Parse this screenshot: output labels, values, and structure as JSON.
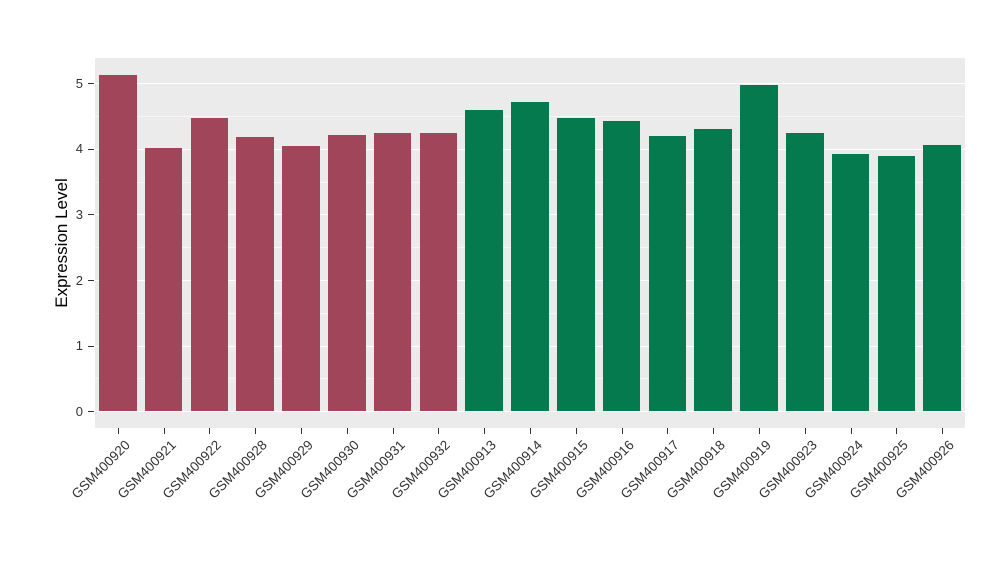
{
  "chart_data": {
    "type": "bar",
    "title": "",
    "xlabel": "",
    "ylabel": "Expression Level",
    "ylim": [
      0,
      5
    ],
    "y_major_ticks": [
      0,
      1,
      2,
      3,
      4,
      5
    ],
    "y_minor_step": 0.5,
    "grid": true,
    "legend_position": "none",
    "panel_background": "#EBEBEB",
    "categories": [
      "GSM400920",
      "GSM400921",
      "GSM400922",
      "GSM400928",
      "GSM400929",
      "GSM400930",
      "GSM400931",
      "GSM400932",
      "GSM400913",
      "GSM400914",
      "GSM400915",
      "GSM400916",
      "GSM400917",
      "GSM400918",
      "GSM400919",
      "GSM400923",
      "GSM400924",
      "GSM400925",
      "GSM400926"
    ],
    "values": [
      5.13,
      4.01,
      4.47,
      4.18,
      4.05,
      4.21,
      4.24,
      4.25,
      4.6,
      4.71,
      4.47,
      4.42,
      4.19,
      4.3,
      4.98,
      4.24,
      3.92,
      3.89,
      4.06
    ],
    "bar_colors_by_group": {
      "group1": "#A1455A",
      "group2": "#067A4F"
    },
    "groups": [
      "group1",
      "group1",
      "group1",
      "group1",
      "group1",
      "group1",
      "group1",
      "group1",
      "group2",
      "group2",
      "group2",
      "group2",
      "group2",
      "group2",
      "group2",
      "group2",
      "group2",
      "group2",
      "group2"
    ]
  }
}
